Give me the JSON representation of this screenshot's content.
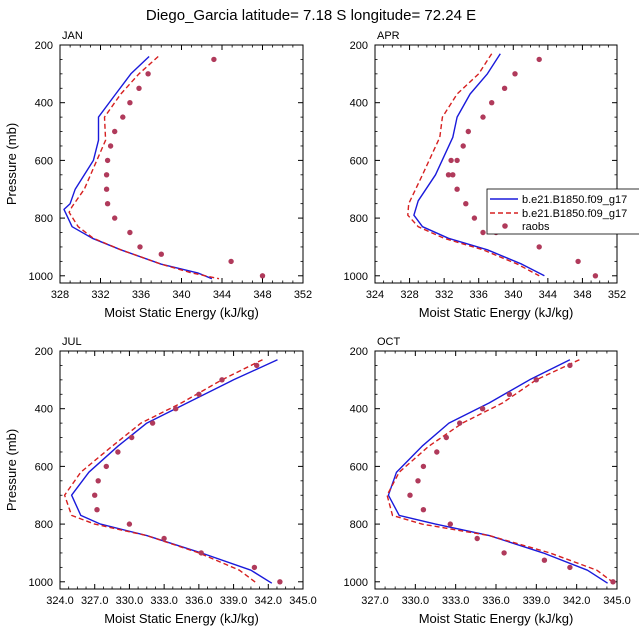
{
  "figure": {
    "title": "Diego_Garcia  latitude= 7.18 S longitude= 72.24 E"
  },
  "legend": {
    "entries": [
      {
        "label": "b.e21.B1850.f09_g17",
        "color": "#1a1adb",
        "style": "solid"
      },
      {
        "label": "b.e21.B1850.f09_g17",
        "color": "#d62020",
        "style": "dashed"
      },
      {
        "label": "raobs",
        "color": "#b03a5b",
        "style": "marker"
      }
    ]
  },
  "chart_data": [
    {
      "type": "line",
      "panel": "JAN",
      "title": "JAN",
      "xlabel": "Moist Static Energy (kJ/kg)",
      "ylabel": "Pressure (mb)",
      "xlim": [
        328,
        352
      ],
      "ylim": [
        1025,
        200
      ],
      "xticks": [
        328,
        332,
        336,
        340,
        344,
        348,
        352
      ],
      "xtick_labels": [
        "328",
        "332",
        "336",
        "340",
        "344",
        "348",
        "352"
      ],
      "yticks": [
        200,
        400,
        600,
        800,
        1000
      ],
      "ytick_labels": [
        "200",
        "400",
        "600",
        "800",
        "1000"
      ],
      "series": [
        {
          "name": "b.e21.B1850.f09_g17",
          "color": "#1a1adb",
          "dash": "",
          "x": [
            336.8,
            335.0,
            333.5,
            331.8,
            331.8,
            331.3,
            329.5,
            329.0,
            328.4,
            329.2,
            331.2,
            334.0,
            338.0,
            341.6,
            343.0
          ],
          "y": [
            240,
            300,
            370,
            450,
            530,
            600,
            700,
            750,
            770,
            830,
            870,
            910,
            960,
            990,
            1010
          ]
        },
        {
          "name": "b.e21.B1850.f09_g17",
          "color": "#d62020",
          "dash": "5,3",
          "x": [
            337.7,
            335.8,
            334.0,
            332.4,
            332.5,
            330.4,
            329.2,
            328.9,
            329.8,
            331.3,
            334.0,
            338.0,
            341.0,
            343.7
          ],
          "y": [
            240,
            300,
            370,
            450,
            530,
            700,
            760,
            780,
            830,
            870,
            910,
            960,
            990,
            1010
          ]
        }
      ],
      "raobs": {
        "x": [
          343.2,
          336.7,
          335.8,
          334.9,
          334.2,
          333.4,
          333.0,
          332.7,
          332.6,
          332.6,
          332.7,
          333.4,
          334.9,
          335.9,
          338.0,
          344.9,
          348.0
        ],
        "y": [
          250,
          300,
          350,
          400,
          450,
          500,
          550,
          600,
          650,
          700,
          750,
          800,
          850,
          900,
          925,
          950,
          1000
        ]
      }
    },
    {
      "type": "line",
      "panel": "APR",
      "title": "APR",
      "xlabel": "Moist Static Energy (kJ/kg)",
      "ylabel": "Pressure (mb)",
      "xlim": [
        324,
        352
      ],
      "ylim": [
        1025,
        200
      ],
      "xticks": [
        324,
        328,
        332,
        336,
        340,
        344,
        348,
        352
      ],
      "xtick_labels": [
        "324",
        "328",
        "332",
        "336",
        "340",
        "344",
        "348",
        "352"
      ],
      "yticks": [
        200,
        400,
        600,
        800,
        1000
      ],
      "ytick_labels": [
        "200",
        "400",
        "600",
        "800",
        "1000"
      ],
      "series": [
        {
          "name": "b.e21.B1850.f09_g17",
          "color": "#1a1adb",
          "dash": "",
          "x": [
            338.5,
            337.0,
            335.0,
            333.5,
            333.0,
            331.0,
            329.0,
            328.5,
            329.5,
            332.5,
            337.0,
            341.0,
            343.6
          ],
          "y": [
            230,
            300,
            370,
            450,
            520,
            650,
            740,
            790,
            830,
            870,
            910,
            960,
            1000
          ]
        },
        {
          "name": "b.e21.B1850.f09_g17",
          "color": "#d62020",
          "dash": "5,3",
          "x": [
            337.5,
            336.0,
            333.5,
            331.8,
            331.5,
            329.5,
            327.9,
            327.8,
            329.0,
            332.0,
            336.5,
            340.5,
            343.0
          ],
          "y": [
            230,
            300,
            370,
            450,
            520,
            650,
            750,
            790,
            830,
            870,
            910,
            960,
            1000
          ]
        }
      ],
      "raobs": {
        "x": [
          343.0,
          340.2,
          339.0,
          337.5,
          336.5,
          334.8,
          334.2,
          333.5,
          332.8,
          332.5,
          333.0,
          333.5,
          334.5,
          335.5,
          336.5,
          338.0,
          343.0,
          347.5,
          349.5
        ],
        "y": [
          250,
          300,
          350,
          400,
          450,
          500,
          550,
          600,
          600,
          650,
          650,
          700,
          750,
          800,
          850,
          850,
          900,
          950,
          1000
        ]
      }
    },
    {
      "type": "line",
      "panel": "JUL",
      "title": "JUL",
      "xlabel": "Moist Static Energy (kJ/kg)",
      "ylabel": "Pressure (mb)",
      "xlim": [
        324.0,
        345.0
      ],
      "ylim": [
        1025,
        200
      ],
      "xticks": [
        324.0,
        327.0,
        330.0,
        333.0,
        336.0,
        339.0,
        342.0,
        345.0
      ],
      "xtick_labels": [
        "324.0",
        "327.0",
        "330.0",
        "333.0",
        "336.0",
        "339.0",
        "342.0",
        "345.0"
      ],
      "yticks": [
        200,
        400,
        600,
        800,
        1000
      ],
      "ytick_labels": [
        "200",
        "400",
        "600",
        "800",
        "1000"
      ],
      "series": [
        {
          "name": "b.e21.B1850.f09_g17",
          "color": "#1a1adb",
          "dash": "",
          "x": [
            342.8,
            339.0,
            335.0,
            331.5,
            329.0,
            326.5,
            325.0,
            325.8,
            327.5,
            331.5,
            336.2,
            340.5,
            342.3
          ],
          "y": [
            230,
            300,
            380,
            450,
            530,
            620,
            700,
            770,
            800,
            840,
            900,
            960,
            1005
          ]
        },
        {
          "name": "b.e21.B1850.f09_g17",
          "color": "#d62020",
          "dash": "5,3",
          "x": [
            341.5,
            338.0,
            334.5,
            331.0,
            328.5,
            325.8,
            324.4,
            325.0,
            327.0,
            331.5,
            336.0,
            339.5,
            341.0
          ],
          "y": [
            230,
            300,
            380,
            450,
            530,
            620,
            700,
            770,
            800,
            840,
            900,
            960,
            1005
          ]
        }
      ],
      "raobs": {
        "x": [
          341.0,
          338.0,
          336.0,
          334.0,
          332.0,
          330.2,
          329.0,
          328.0,
          327.3,
          327.0,
          327.2,
          330.0,
          333.0,
          336.2,
          340.8,
          343.0
        ],
        "y": [
          250,
          300,
          350,
          400,
          450,
          500,
          550,
          600,
          650,
          700,
          750,
          800,
          850,
          900,
          950,
          1000
        ]
      }
    },
    {
      "type": "line",
      "panel": "OCT",
      "title": "OCT",
      "xlabel": "Moist Static Energy (kJ/kg)",
      "ylabel": "Pressure (mb)",
      "xlim": [
        327.0,
        345.0
      ],
      "ylim": [
        1025,
        200
      ],
      "xticks": [
        327.0,
        330.0,
        333.0,
        336.0,
        339.0,
        342.0,
        345.0
      ],
      "xtick_labels": [
        "327.0",
        "330.0",
        "333.0",
        "336.0",
        "339.0",
        "342.0",
        "345.0"
      ],
      "yticks": [
        200,
        400,
        600,
        800,
        1000
      ],
      "ytick_labels": [
        "200",
        "400",
        "600",
        "800",
        "1000"
      ],
      "series": [
        {
          "name": "b.e21.B1850.f09_g17",
          "color": "#1a1adb",
          "dash": "",
          "x": [
            341.5,
            338.5,
            335.5,
            332.5,
            330.5,
            328.6,
            328.0,
            328.8,
            331.5,
            335.5,
            339.5,
            342.8,
            344.3
          ],
          "y": [
            230,
            300,
            380,
            450,
            530,
            620,
            700,
            770,
            800,
            840,
            900,
            960,
            1005
          ]
        },
        {
          "name": "b.e21.B1850.f09_g17",
          "color": "#d62020",
          "dash": "5,3",
          "x": [
            342.2,
            339.0,
            336.5,
            333.5,
            331.0,
            328.8,
            327.9,
            328.3,
            330.5,
            335.5,
            340.0,
            343.5,
            344.8
          ],
          "y": [
            230,
            300,
            380,
            450,
            530,
            620,
            700,
            770,
            800,
            840,
            900,
            960,
            1005
          ]
        }
      ],
      "raobs": {
        "x": [
          341.5,
          339.0,
          337.0,
          335.0,
          333.3,
          332.3,
          331.6,
          330.6,
          330.2,
          329.6,
          330.6,
          332.6,
          334.6,
          336.6,
          339.6,
          341.5,
          344.7
        ],
        "y": [
          250,
          300,
          350,
          400,
          450,
          500,
          550,
          600,
          650,
          700,
          750,
          800,
          850,
          900,
          925,
          950,
          1000
        ]
      }
    }
  ]
}
